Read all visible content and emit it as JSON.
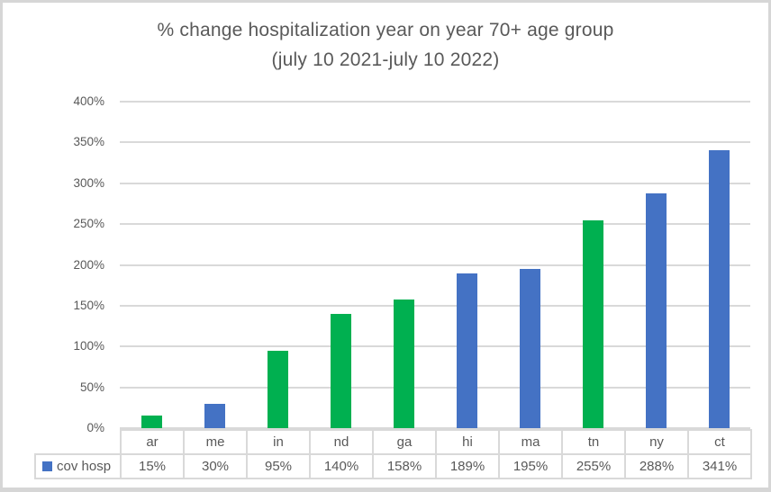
{
  "window": {
    "background": "#ffffff",
    "border_color": "#d6d6d6"
  },
  "chart_data": {
    "type": "bar",
    "title": "% change hospitalization year on year 70+ age group (july 10 2021-july 10 2022)",
    "title_line1": "% change hospitalization year on year 70+ age group",
    "title_line2": "(july 10 2021-july 10 2022)",
    "categories": [
      "ar",
      "me",
      "in",
      "nd",
      "ga",
      "hi",
      "ma",
      "tn",
      "ny",
      "ct"
    ],
    "series": [
      {
        "name": "cov hosp",
        "values": [
          15,
          30,
          95,
          140,
          158,
          189,
          195,
          255,
          288,
          341
        ],
        "value_labels": [
          "15%",
          "30%",
          "95%",
          "140%",
          "158%",
          "189%",
          "195%",
          "255%",
          "288%",
          "341%"
        ]
      }
    ],
    "bar_colors": [
      "#00b050",
      "#4472c4",
      "#00b050",
      "#00b050",
      "#00b050",
      "#4472c4",
      "#4472c4",
      "#00b050",
      "#4472c4",
      "#4472c4"
    ],
    "xlabel": "",
    "ylabel": "",
    "ylim": [
      0,
      400
    ],
    "ytick_step": 50,
    "ytick_labels": [
      "0%",
      "50%",
      "100%",
      "150%",
      "200%",
      "250%",
      "300%",
      "350%",
      "400%"
    ],
    "grid": true,
    "legend_position": "data-table-left",
    "legend": {
      "label": "cov hosp",
      "marker_color": "#4472c4"
    },
    "colors": {
      "green": "#00b050",
      "blue": "#4472c4",
      "gridline": "#d9d9d9",
      "axis_text": "#595959",
      "table_border": "#d9d9d9",
      "title_text": "#595959"
    }
  }
}
